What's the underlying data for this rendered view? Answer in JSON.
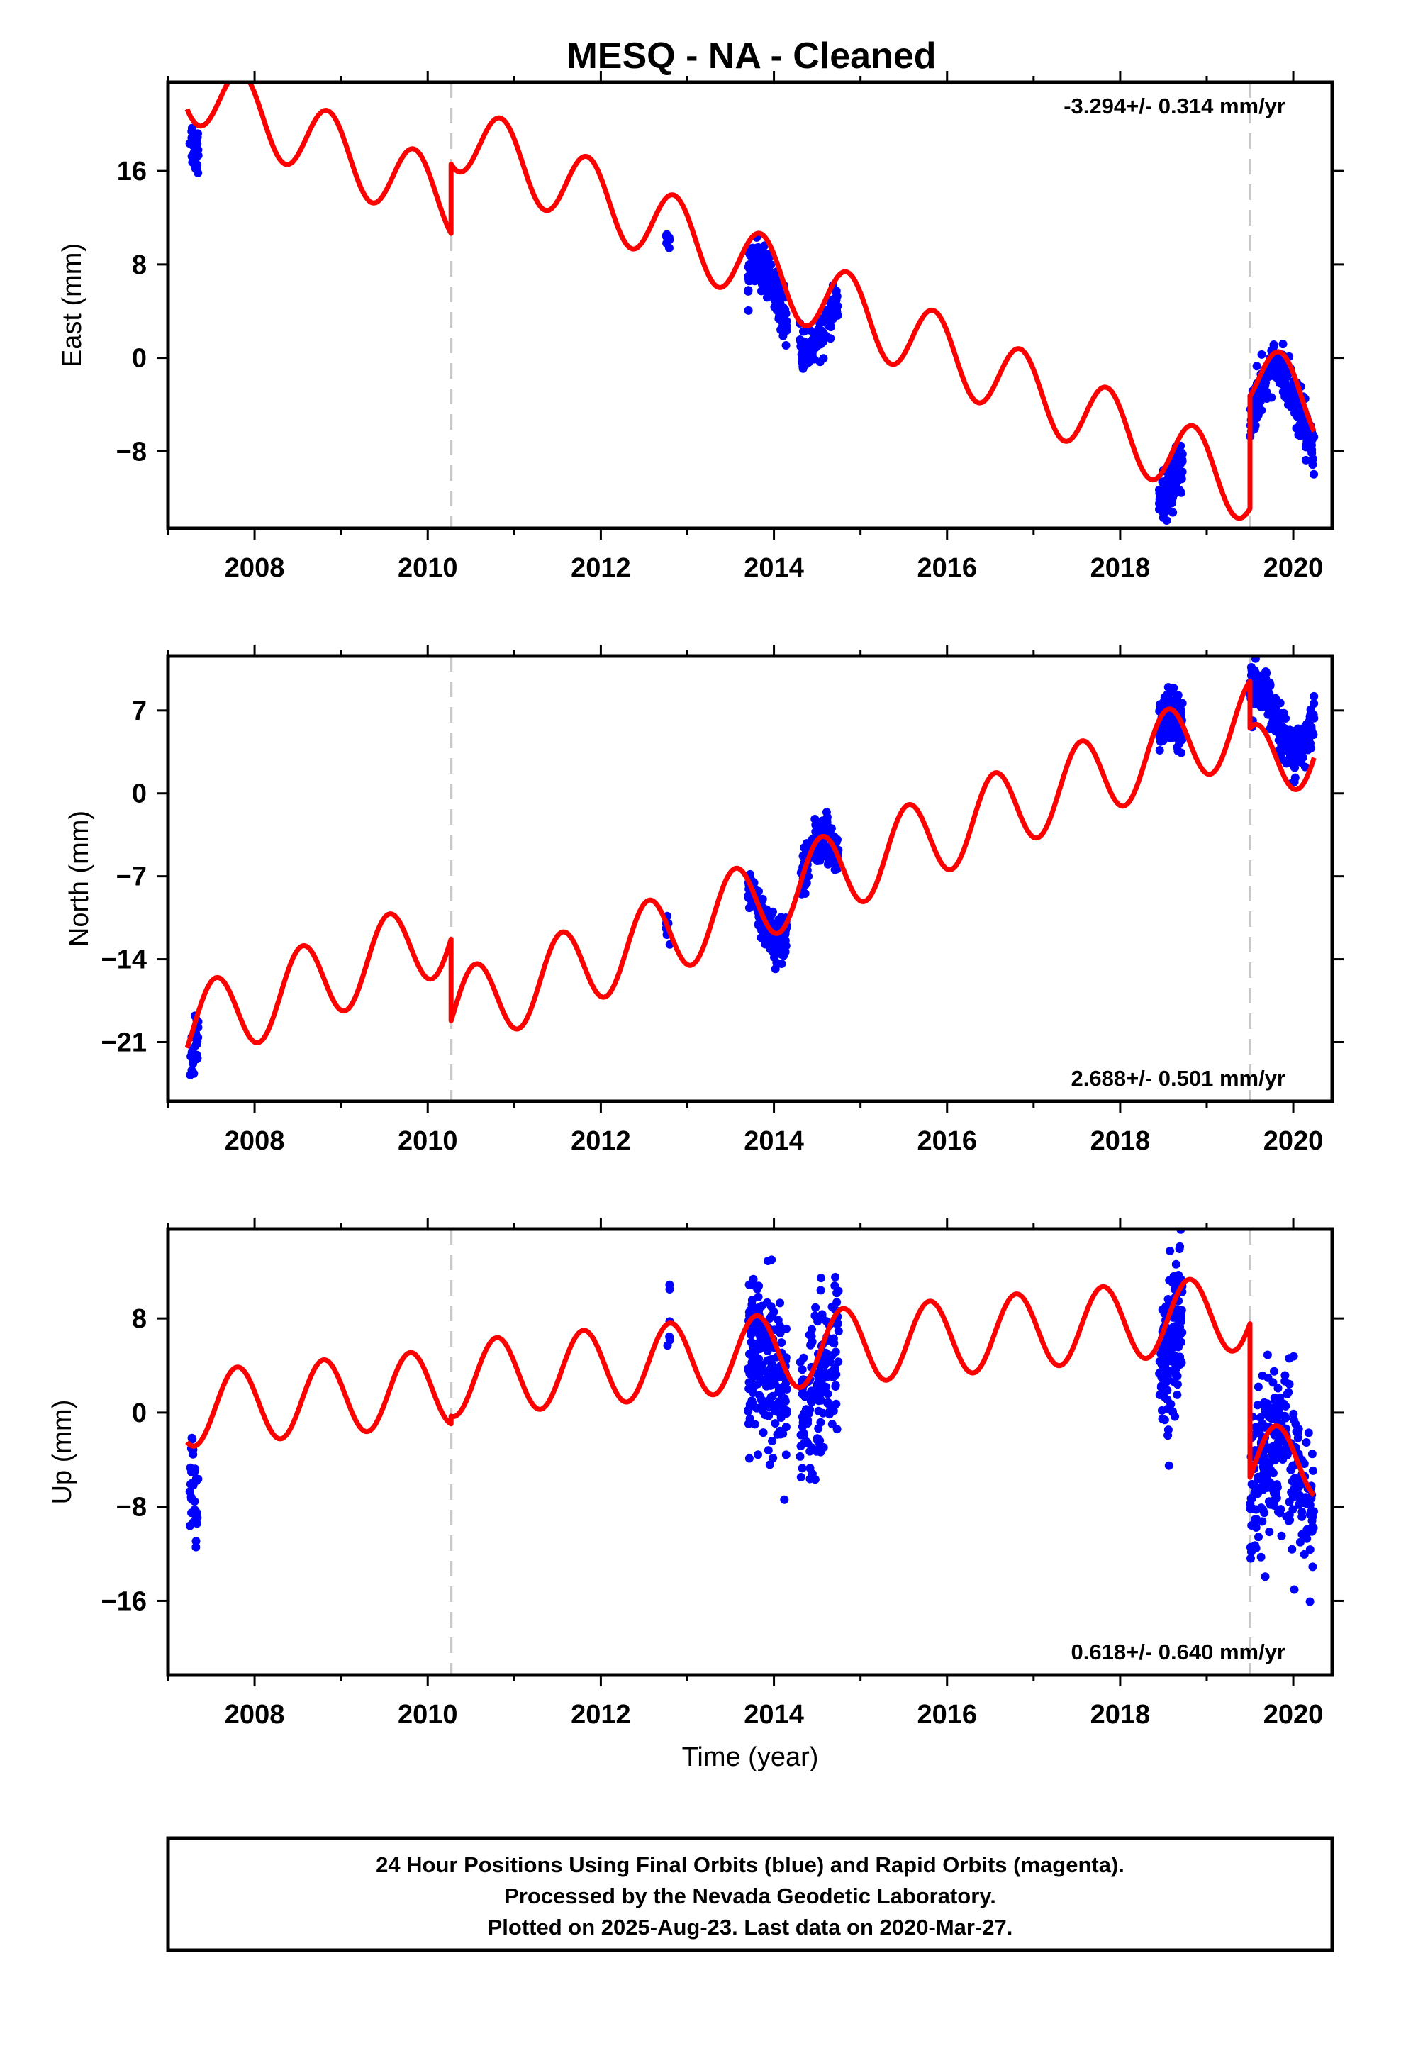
{
  "title": "MESQ  - NA - Cleaned",
  "caption": [
    "24 Hour Positions Using Final Orbits (blue) and Rapid Orbits (magenta).",
    "Processed by the Nevada Geodetic Laboratory.",
    "Plotted on 2025-Aug-23. Last data on 2020-Mar-27."
  ],
  "colors": {
    "final_orbit_points": "#0000ff",
    "model_fit": "#ff0000",
    "breakpoint_line": "#c8c8c8",
    "frame": "#000000"
  },
  "chart_data": [
    {
      "type": "scatter",
      "component": "East",
      "ylabel": "East (mm)",
      "xlabel": "",
      "xlim": [
        2007.0,
        2020.45
      ],
      "ylim": [
        -14.6,
        23.6
      ],
      "xticks": [
        2008,
        2010,
        2012,
        2014,
        2016,
        2018,
        2020
      ],
      "xtick_labels": [
        "2008",
        "2010",
        "2012",
        "2014",
        "2016",
        "2018",
        "2020"
      ],
      "yticks": [
        16,
        8,
        0,
        -8
      ],
      "ytick_labels": [
        "16",
        "8",
        "0",
        "−8"
      ],
      "breakpoints": [
        2010.27,
        2019.5
      ],
      "rate_label": "-3.294+/- 0.314 mm/yr",
      "rate_position": "top-right",
      "model": {
        "rate_mm_per_yr": -3.294,
        "annual_amplitude": 3.1,
        "annual_phase_peak": 0.85,
        "segments": [
          {
            "start": 2007.22,
            "end": 2010.27,
            "value_at_start": 21.3
          },
          {
            "start": 2010.27,
            "end": 2019.5,
            "value_at_start": 16.6
          },
          {
            "start": 2019.5,
            "end": 2020.24,
            "value_at_start": -3.3
          }
        ]
      },
      "observation_clusters": [
        {
          "start": 2007.25,
          "end": 2007.35,
          "count": 30,
          "offset": 0.0,
          "spread": 1.1
        },
        {
          "start": 2012.75,
          "end": 2012.8,
          "count": 8,
          "offset": -0.8,
          "spread": 0.8
        },
        {
          "start": 2013.7,
          "end": 2014.15,
          "count": 220,
          "offset": 0.0,
          "spread": 0.9
        },
        {
          "start": 2014.3,
          "end": 2014.75,
          "count": 130,
          "offset": 0.4,
          "spread": 0.8
        },
        {
          "start": 2018.45,
          "end": 2018.72,
          "count": 150,
          "offset": 0.3,
          "spread": 1.0
        },
        {
          "start": 2019.5,
          "end": 2020.24,
          "count": 260,
          "offset": 0.2,
          "spread": 1.0
        }
      ]
    },
    {
      "type": "scatter",
      "component": "North",
      "ylabel": "North (mm)",
      "xlabel": "",
      "xlim": [
        2007.0,
        2020.45
      ],
      "ylim": [
        -26.0,
        11.6
      ],
      "xticks": [
        2008,
        2010,
        2012,
        2014,
        2016,
        2018,
        2020
      ],
      "xtick_labels": [
        "2008",
        "2010",
        "2012",
        "2014",
        "2016",
        "2018",
        "2020"
      ],
      "yticks": [
        7,
        0,
        -7,
        -14,
        -21
      ],
      "ytick_labels": [
        "7",
        "0",
        "−7",
        "−14",
        "−21"
      ],
      "breakpoints": [
        2010.27,
        2019.5
      ],
      "rate_label": "2.688+/- 0.501 mm/yr",
      "rate_position": "bottom-right",
      "model": {
        "rate_mm_per_yr": 2.688,
        "annual_amplitude": 3.4,
        "annual_phase_peak": 0.55,
        "segments": [
          {
            "start": 2007.22,
            "end": 2010.27,
            "value_at_start": -21.5
          },
          {
            "start": 2010.27,
            "end": 2019.5,
            "value_at_start": -19.2
          },
          {
            "start": 2019.5,
            "end": 2020.24,
            "value_at_start": 5.5
          }
        ]
      },
      "observation_clusters": [
        {
          "start": 2007.25,
          "end": 2007.35,
          "count": 30,
          "offset": -0.3,
          "spread": 1.0
        },
        {
          "start": 2012.75,
          "end": 2012.8,
          "count": 8,
          "offset": 0.6,
          "spread": 0.8
        },
        {
          "start": 2013.7,
          "end": 2014.15,
          "count": 220,
          "offset": 0.2,
          "spread": 0.9
        },
        {
          "start": 2014.3,
          "end": 2014.75,
          "count": 130,
          "offset": 0.5,
          "spread": 1.0
        },
        {
          "start": 2018.45,
          "end": 2018.72,
          "count": 150,
          "offset": 0.3,
          "spread": 1.0
        },
        {
          "start": 2019.5,
          "end": 2020.24,
          "count": 260,
          "offset": 0.0,
          "spread": 1.0
        }
      ]
    },
    {
      "type": "scatter",
      "component": "Up",
      "ylabel": "Up (mm)",
      "xlabel": "Time (year)",
      "xlim": [
        2007.0,
        2020.45
      ],
      "ylim": [
        -22.3,
        15.6
      ],
      "xticks": [
        2008,
        2010,
        2012,
        2014,
        2016,
        2018,
        2020
      ],
      "xtick_labels": [
        "2008",
        "2010",
        "2012",
        "2014",
        "2016",
        "2018",
        "2020"
      ],
      "yticks": [
        8,
        0,
        -8,
        -16
      ],
      "ytick_labels": [
        "8",
        "0",
        "−8",
        "−16"
      ],
      "breakpoints": [
        2010.27,
        2019.5
      ],
      "rate_label": "0.618+/- 0.640 mm/yr",
      "rate_position": "bottom-right",
      "model": {
        "rate_mm_per_yr": 0.618,
        "annual_amplitude": 3.2,
        "annual_phase_peak": 0.8,
        "segments": [
          {
            "start": 2007.22,
            "end": 2010.27,
            "value_at_start": -2.5
          },
          {
            "start": 2010.27,
            "end": 2019.5,
            "value_at_start": -0.3
          },
          {
            "start": 2019.5,
            "end": 2020.24,
            "value_at_start": -5.5
          }
        ]
      },
      "observation_clusters": [
        {
          "start": 2007.25,
          "end": 2007.35,
          "count": 30,
          "offset": 0.0,
          "spread": 2.5
        },
        {
          "start": 2012.75,
          "end": 2012.8,
          "count": 6,
          "offset": 2.5,
          "spread": 1.5
        },
        {
          "start": 2013.7,
          "end": 2014.15,
          "count": 220,
          "offset": 0.0,
          "spread": 3.5
        },
        {
          "start": 2014.3,
          "end": 2014.75,
          "count": 150,
          "offset": 0.0,
          "spread": 3.8
        },
        {
          "start": 2018.45,
          "end": 2018.72,
          "count": 160,
          "offset": 0.0,
          "spread": 3.2
        },
        {
          "start": 2019.5,
          "end": 2020.24,
          "count": 280,
          "offset": 0.0,
          "spread": 3.2
        }
      ]
    }
  ]
}
